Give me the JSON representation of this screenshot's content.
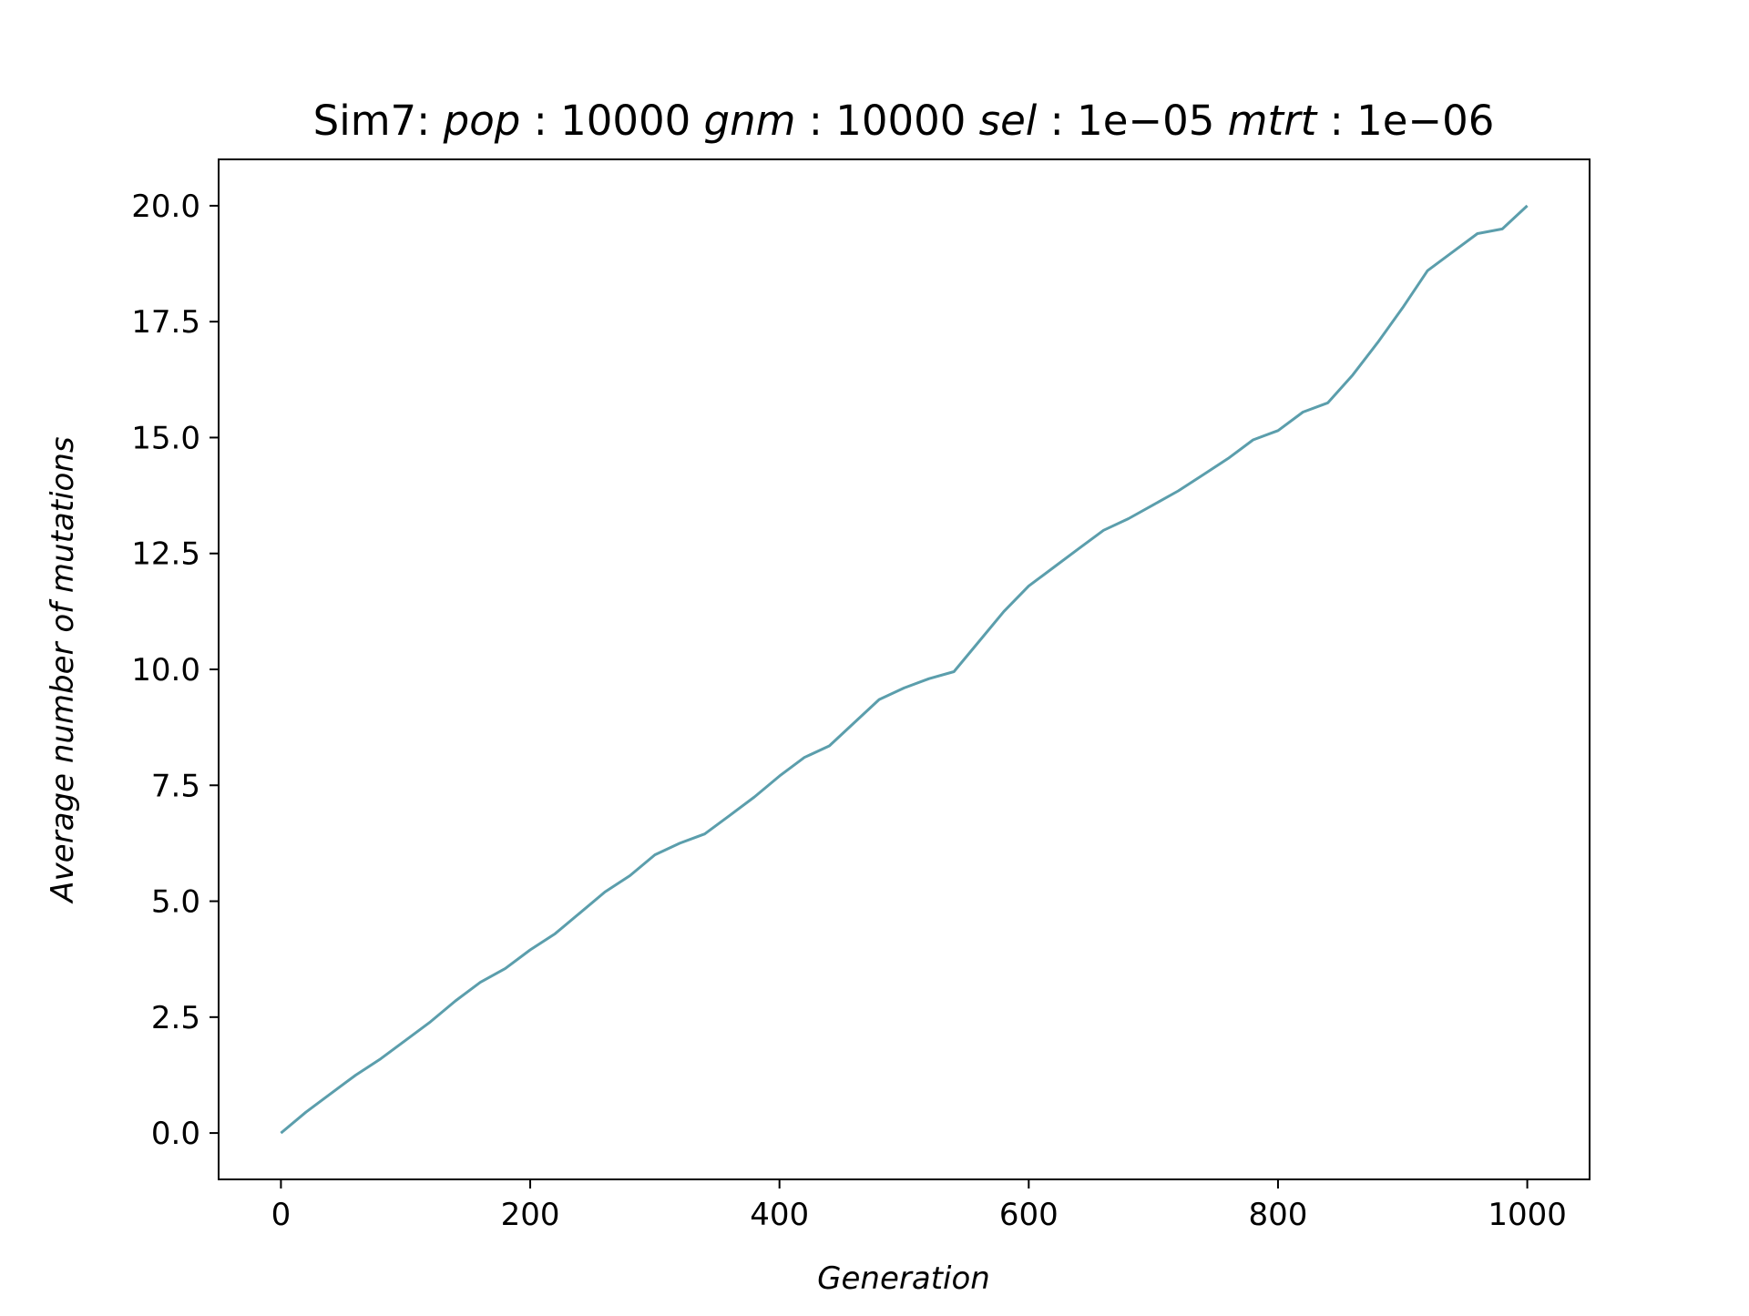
{
  "chart_data": {
    "type": "line",
    "title": {
      "prefix": "Sim7:",
      "parts": [
        {
          "key": "pop",
          "value": "10000"
        },
        {
          "key": "gnm",
          "value": "10000"
        },
        {
          "key": "sel",
          "value": "1e−05"
        },
        {
          "key": "mtrt",
          "value": "1e−06"
        }
      ]
    },
    "xlabel": "Generation",
    "ylabel": "Average number of mutations",
    "xlim": [
      -50,
      1050
    ],
    "ylim": [
      -1.0,
      21.0
    ],
    "xticks": [
      0,
      200,
      400,
      600,
      800,
      1000
    ],
    "xtick_labels": [
      "0",
      "200",
      "400",
      "600",
      "800",
      "1000"
    ],
    "yticks": [
      0.0,
      2.5,
      5.0,
      7.5,
      10.0,
      12.5,
      15.0,
      17.5,
      20.0
    ],
    "ytick_labels": [
      "0.0",
      "2.5",
      "5.0",
      "7.5",
      "10.0",
      "12.5",
      "15.0",
      "17.5",
      "20.0"
    ],
    "grid": false,
    "line_color": "#5b9eac",
    "series": [
      {
        "x": [
          0,
          20,
          40,
          60,
          80,
          100,
          120,
          140,
          160,
          180,
          200,
          220,
          240,
          260,
          280,
          300,
          320,
          340,
          360,
          380,
          400,
          420,
          440,
          460,
          480,
          500,
          520,
          540,
          560,
          580,
          600,
          620,
          640,
          660,
          680,
          700,
          720,
          740,
          760,
          780,
          800,
          820,
          840,
          860,
          880,
          900,
          920,
          940,
          960,
          980,
          1000
        ],
        "y": [
          0.0,
          0.45,
          0.85,
          1.25,
          1.6,
          2.0,
          2.4,
          2.85,
          3.25,
          3.55,
          3.95,
          4.3,
          4.75,
          5.2,
          5.55,
          6.0,
          6.25,
          6.45,
          6.85,
          7.25,
          7.7,
          8.1,
          8.35,
          8.85,
          9.35,
          9.6,
          9.8,
          9.95,
          10.6,
          11.25,
          11.8,
          12.2,
          12.6,
          13.0,
          13.25,
          13.55,
          13.85,
          14.2,
          14.55,
          14.95,
          15.15,
          15.55,
          15.75,
          16.35,
          17.05,
          17.8,
          18.6,
          19.0,
          19.4,
          19.5,
          20.0
        ]
      }
    ]
  }
}
